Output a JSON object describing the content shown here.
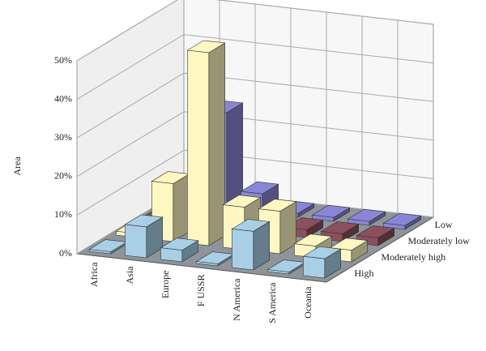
{
  "chart_data": {
    "type": "bar3d",
    "y_label": "Area",
    "categories": [
      "Africa",
      "Asia",
      "Europe",
      "F USSR",
      "N America",
      "S America",
      "Oceania"
    ],
    "series": [
      {
        "name": "High",
        "color": "#a8cfe6",
        "values": [
          0.5,
          8,
          3,
          0.5,
          10,
          0.5,
          5
        ]
      },
      {
        "name": "Moderately high",
        "color": "#fff7c2",
        "values": [
          1,
          15,
          50,
          11,
          11,
          3,
          3
        ]
      },
      {
        "name": "Moderately low",
        "color": "#8c4f5e",
        "values": [
          0.5,
          1,
          1,
          1,
          2,
          2,
          2
        ]
      },
      {
        "name": "Low",
        "color": "#8a86d6",
        "values": [
          1,
          25,
          5,
          1,
          1,
          1,
          1
        ]
      }
    ],
    "ylim": [
      0,
      50
    ],
    "yticks": [
      {
        "value": 0,
        "label": "0%"
      },
      {
        "value": 10,
        "label": "10%"
      },
      {
        "value": 20,
        "label": "20%"
      },
      {
        "value": 30,
        "label": "30%"
      },
      {
        "value": 40,
        "label": "40%"
      },
      {
        "value": 50,
        "label": "50%"
      }
    ],
    "grid": true
  }
}
